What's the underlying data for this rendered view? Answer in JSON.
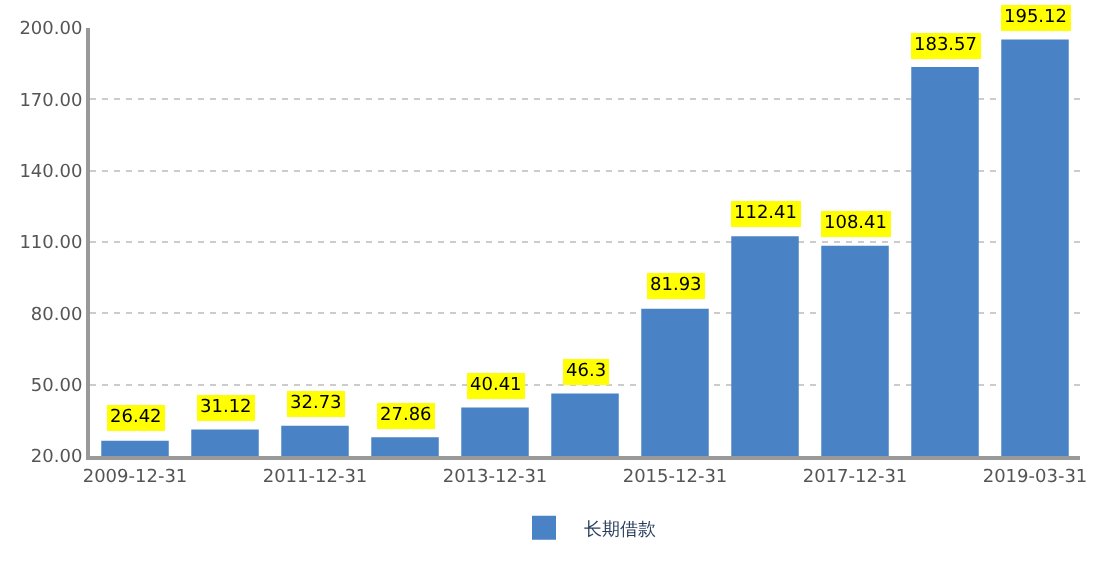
{
  "chart_data": {
    "type": "bar",
    "categories": [
      "2009-12-31",
      null,
      "2011-12-31",
      null,
      "2013-12-31",
      null,
      "2015-12-31",
      null,
      "2017-12-31",
      null,
      "2019-03-31"
    ],
    "series": [
      {
        "name": "长期借款",
        "color": "#4a83c5",
        "values": [
          26.42,
          31.12,
          32.73,
          27.86,
          40.41,
          46.3,
          81.93,
          112.41,
          108.41,
          183.57,
          195.12
        ]
      }
    ],
    "ylim": [
      20,
      200
    ],
    "yticks": [
      {
        "value": 20,
        "label": "20.00"
      },
      {
        "value": 50,
        "label": "50.00"
      },
      {
        "value": 80,
        "label": "80.00"
      },
      {
        "value": 110,
        "label": "110.00"
      },
      {
        "value": 140,
        "label": "140.00"
      },
      {
        "value": 170,
        "label": "170.00"
      },
      {
        "value": 200,
        "label": "200.00"
      }
    ],
    "grid": "y",
    "legend": "bottom",
    "data_labels": true
  }
}
